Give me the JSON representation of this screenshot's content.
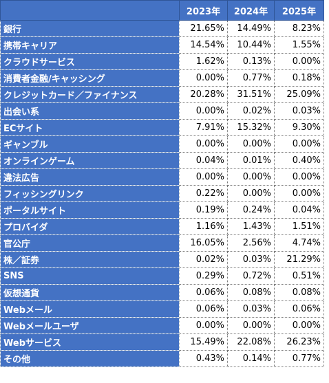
{
  "table": {
    "header": [
      "2023年",
      "2024年",
      "2025年"
    ],
    "rows": [
      [
        "銀行",
        "21.65%",
        "14.49%",
        "8.23%"
      ],
      [
        "携帯キャリア",
        "14.54%",
        "10.44%",
        "1.55%"
      ],
      [
        "クラウドサービス",
        "1.62%",
        "0.13%",
        "0.00%"
      ],
      [
        "消費者金融/キャッシング",
        "0.00%",
        "0.77%",
        "0.18%"
      ],
      [
        "クレジットカード／ファイナンス",
        "20.28%",
        "31.51%",
        "25.09%"
      ],
      [
        "出会い系",
        "0.00%",
        "0.02%",
        "0.03%"
      ],
      [
        "ECサイト",
        "7.91%",
        "15.32%",
        "9.30%"
      ],
      [
        "ギャンブル",
        "0.00%",
        "0.00%",
        "0.00%"
      ],
      [
        "オンラインゲーム",
        "0.04%",
        "0.01%",
        "0.40%"
      ],
      [
        "違法広告",
        "0.00%",
        "0.00%",
        "0.00%"
      ],
      [
        "フィッシングリンク",
        "0.22%",
        "0.00%",
        "0.00%"
      ],
      [
        "ポータルサイト",
        "0.19%",
        "0.24%",
        "0.04%"
      ],
      [
        "プロバイダ",
        "1.16%",
        "1.43%",
        "1.51%"
      ],
      [
        "官公庁",
        "16.05%",
        "2.56%",
        "4.74%"
      ],
      [
        "株／証券",
        "0.02%",
        "0.03%",
        "21.29%"
      ],
      [
        "SNS",
        "0.29%",
        "0.72%",
        "0.51%"
      ],
      [
        "仮想通貨",
        "0.06%",
        "0.08%",
        "0.08%"
      ],
      [
        "Webメール",
        "0.06%",
        "0.03%",
        "0.06%"
      ],
      [
        "Webメールユーザ",
        "0.00%",
        "0.00%",
        "0.00%"
      ],
      [
        "Webサービス",
        "15.49%",
        "22.08%",
        "26.23%"
      ],
      [
        "その他",
        "0.43%",
        "0.14%",
        "0.77%"
      ]
    ]
  }
}
